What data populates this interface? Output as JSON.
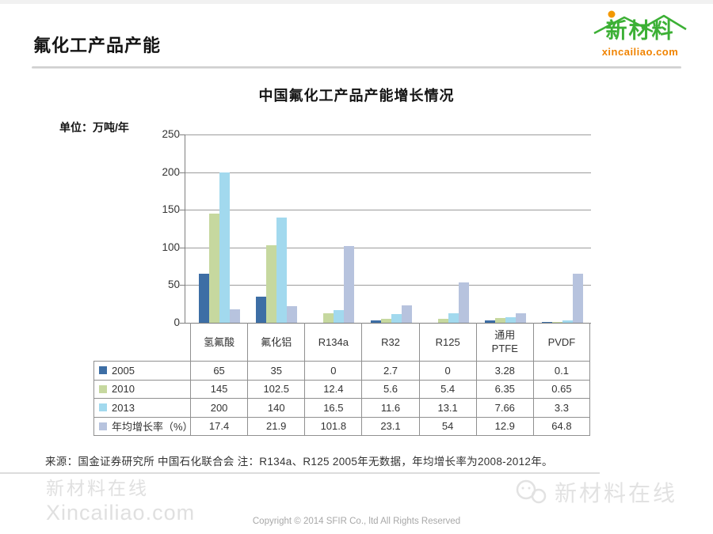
{
  "page": {
    "header_title": "氟化工产品产能",
    "logo": {
      "brand": "新材料",
      "domain": "xincailiao.com",
      "brand_color": "#3cb035",
      "accent_color": "#f08300"
    },
    "source_note": "来源：国金证券研究所 中国石化联合会 注：R134a、R125 2005年无数据，年均增长率为2008-2012年。",
    "footer": {
      "watermark_left_line1": "新材料在线",
      "watermark_left_line2": "Xincailiao.com",
      "copyright": "Copyright © 2014  SFIR Co., ltd  All Rights Reserved",
      "watermark_right": "新材料在线"
    }
  },
  "chart_data": {
    "type": "bar",
    "title": "中国氟化工产品产能增长情况",
    "unit_label": "单位：万吨/年",
    "categories": [
      "氢氟酸",
      "氟化铝",
      "R134a",
      "R32",
      "R125",
      "通用PTFE",
      "PVDF"
    ],
    "categories_display": [
      [
        "氢氟酸"
      ],
      [
        "氟化铝"
      ],
      [
        "R134a"
      ],
      [
        "R32"
      ],
      [
        "R125"
      ],
      [
        "通用",
        "PTFE"
      ],
      [
        "PVDF"
      ]
    ],
    "series": [
      {
        "name": "2005",
        "color": "#3d6ea5",
        "values": [
          65,
          35,
          0,
          2.7,
          0,
          3.28,
          0.1
        ]
      },
      {
        "name": "2010",
        "color": "#c6d89f",
        "values": [
          145,
          102.5,
          12.4,
          5.6,
          5.4,
          6.35,
          0.65
        ]
      },
      {
        "name": "2013",
        "color": "#a2d9ee",
        "values": [
          200,
          140,
          16.5,
          11.6,
          13.1,
          7.66,
          3.3
        ]
      },
      {
        "name": "年均增长率（%）",
        "color": "#b7c3de",
        "values": [
          17.4,
          21.9,
          101.8,
          23.1,
          54,
          12.9,
          64.8
        ]
      }
    ],
    "ylabel": "万吨/年",
    "ylim": [
      0,
      250
    ],
    "yticks": [
      0,
      50,
      100,
      150,
      200,
      250
    ],
    "grid": true,
    "legend_position": "table-rows-left"
  }
}
